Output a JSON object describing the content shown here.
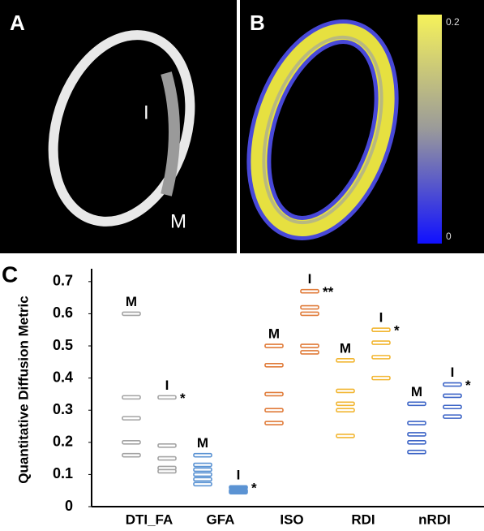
{
  "panels": {
    "a": {
      "label": "A",
      "annotations": [
        "I",
        "M"
      ]
    },
    "b": {
      "label": "B",
      "colorbar": {
        "max": "0.2",
        "min": "0"
      }
    }
  },
  "chart_data": {
    "type": "strip",
    "panel_label": "C",
    "y_label": "Quantitative Diffusion Metric",
    "ylim": [
      0,
      0.74
    ],
    "yticks": [
      0,
      0.1,
      0.2,
      0.3,
      0.4,
      0.5,
      0.6,
      0.7
    ],
    "categories": [
      {
        "name": "DTI_FA",
        "color": "#a3a3a3",
        "groups": [
          {
            "label": "M",
            "values": [
              0.6,
              0.34,
              0.275,
              0.2,
              0.16
            ]
          },
          {
            "label": "I",
            "values": [
              0.34,
              0.19,
              0.15,
              0.12,
              0.11
            ],
            "annotation": "*"
          }
        ]
      },
      {
        "name": "GFA",
        "color": "#5b93d3",
        "groups": [
          {
            "label": "M",
            "values": [
              0.16,
              0.13,
              0.115,
              0.1,
              0.085,
              0.07
            ]
          },
          {
            "label": "I",
            "values": [
              0.06,
              0.05,
              0.045
            ],
            "annotation": "*",
            "filled": true
          }
        ]
      },
      {
        "name": "ISO",
        "color": "#e07b39",
        "groups": [
          {
            "label": "M",
            "values": [
              0.5,
              0.44,
              0.35,
              0.3,
              0.26
            ]
          },
          {
            "label": "I",
            "values": [
              0.67,
              0.62,
              0.6,
              0.5,
              0.48
            ],
            "annotation": "**"
          }
        ]
      },
      {
        "name": "RDI",
        "color": "#f2b632",
        "groups": [
          {
            "label": "M",
            "values": [
              0.455,
              0.36,
              0.32,
              0.3,
              0.22
            ]
          },
          {
            "label": "I",
            "values": [
              0.55,
              0.51,
              0.465,
              0.4
            ],
            "annotation": "*"
          }
        ]
      },
      {
        "name": "nRDI",
        "color": "#3c64c6",
        "groups": [
          {
            "label": "M",
            "values": [
              0.32,
              0.26,
              0.225,
              0.2,
              0.17
            ]
          },
          {
            "label": "I",
            "values": [
              0.38,
              0.345,
              0.31,
              0.28
            ],
            "annotation": "*"
          }
        ]
      }
    ]
  }
}
